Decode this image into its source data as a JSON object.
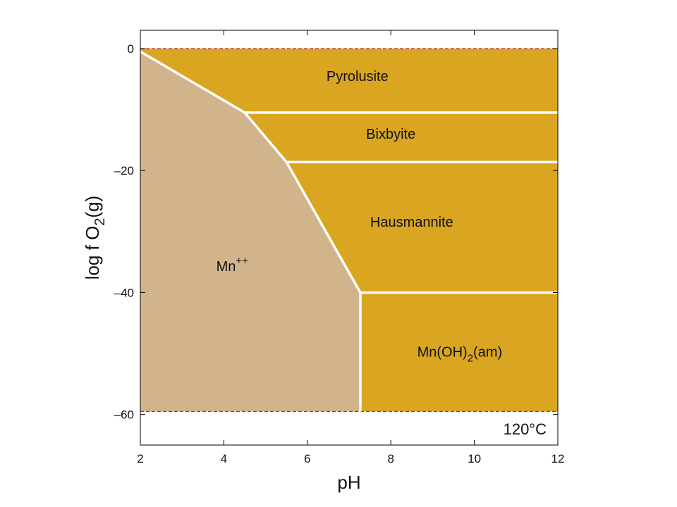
{
  "chart_data": {
    "type": "phase-diagram",
    "title": "",
    "xlabel": "pH",
    "ylabel": {
      "pre": "log f O",
      "sub": "2",
      "post": "(g)"
    },
    "xlim": [
      2,
      12
    ],
    "ylim": [
      -65,
      3
    ],
    "xticks": [
      {
        "value": 2,
        "label": "2"
      },
      {
        "value": 4,
        "label": "4"
      },
      {
        "value": 6,
        "label": "6"
      },
      {
        "value": 8,
        "label": "8"
      },
      {
        "value": 10,
        "label": "10"
      },
      {
        "value": 12,
        "label": "12"
      }
    ],
    "yticks": [
      {
        "value": 0,
        "label": "0"
      },
      {
        "value": -20,
        "label": "–20"
      },
      {
        "value": -40,
        "label": "–40"
      },
      {
        "value": -60,
        "label": "–60"
      }
    ],
    "annotation": "120°C",
    "stability_limits": {
      "upper": 0,
      "lower": -59.5,
      "color": "#a83232"
    },
    "colors": {
      "aqueous": "#d2b48c",
      "mineral": "#daa520",
      "boundary": "#ffffff"
    },
    "regions": [
      {
        "name": "Mn++",
        "label": {
          "base": "Mn",
          "sup": "++"
        },
        "kind": "aqueous",
        "label_at": [
          4.2,
          -36.5
        ],
        "polygon": [
          [
            2,
            0
          ],
          [
            2,
            -59.5
          ],
          [
            7.27,
            -59.5
          ],
          [
            7.27,
            -40
          ],
          [
            5.5,
            -18.6
          ],
          [
            4.5,
            -10.5
          ],
          [
            2,
            -0.5
          ]
        ]
      },
      {
        "name": "Pyrolusite",
        "label": {
          "base": "Pyrolusite"
        },
        "kind": "mineral",
        "label_at": [
          7.2,
          -5.3
        ],
        "polygon": [
          [
            2,
            0
          ],
          [
            12,
            0
          ],
          [
            12,
            -10.5
          ],
          [
            4.5,
            -10.5
          ],
          [
            2,
            -0.5
          ]
        ]
      },
      {
        "name": "Bixbyite",
        "label": {
          "base": "Bixbyite"
        },
        "kind": "mineral",
        "label_at": [
          8.0,
          -14.8
        ],
        "polygon": [
          [
            4.5,
            -10.5
          ],
          [
            12,
            -10.5
          ],
          [
            12,
            -18.6
          ],
          [
            5.5,
            -18.6
          ]
        ]
      },
      {
        "name": "Hausmannite",
        "label": {
          "base": "Hausmannite"
        },
        "kind": "mineral",
        "label_at": [
          8.5,
          -29.2
        ],
        "polygon": [
          [
            5.5,
            -18.6
          ],
          [
            12,
            -18.6
          ],
          [
            12,
            -40
          ],
          [
            7.27,
            -40
          ]
        ]
      },
      {
        "name": "Mn(OH)2(am)",
        "label": {
          "base": "Mn(OH)",
          "sub": "2",
          "post": "(am)"
        },
        "kind": "mineral",
        "label_at": [
          9.65,
          -50.5
        ],
        "polygon": [
          [
            7.27,
            -40
          ],
          [
            12,
            -40
          ],
          [
            12,
            -59.5
          ],
          [
            7.27,
            -59.5
          ]
        ]
      }
    ],
    "boundaries": [
      {
        "name": "mn-pyrolusite",
        "points": [
          [
            2,
            -0.5
          ],
          [
            4.5,
            -10.5
          ]
        ]
      },
      {
        "name": "mn-bixbyite",
        "points": [
          [
            4.5,
            -10.5
          ],
          [
            5.5,
            -18.6
          ]
        ]
      },
      {
        "name": "mn-hausmannite",
        "points": [
          [
            5.5,
            -18.6
          ],
          [
            7.27,
            -40
          ]
        ]
      },
      {
        "name": "mn-mnoh2",
        "points": [
          [
            7.27,
            -40
          ],
          [
            7.27,
            -59.5
          ]
        ]
      },
      {
        "name": "pyrolusite-bixbyite",
        "points": [
          [
            4.5,
            -10.5
          ],
          [
            12,
            -10.5
          ]
        ]
      },
      {
        "name": "bixbyite-hausmannite",
        "points": [
          [
            5.5,
            -18.6
          ],
          [
            12,
            -18.6
          ]
        ]
      },
      {
        "name": "hausmannite-mnoh2",
        "points": [
          [
            7.27,
            -40
          ],
          [
            12,
            -40
          ]
        ]
      }
    ]
  }
}
